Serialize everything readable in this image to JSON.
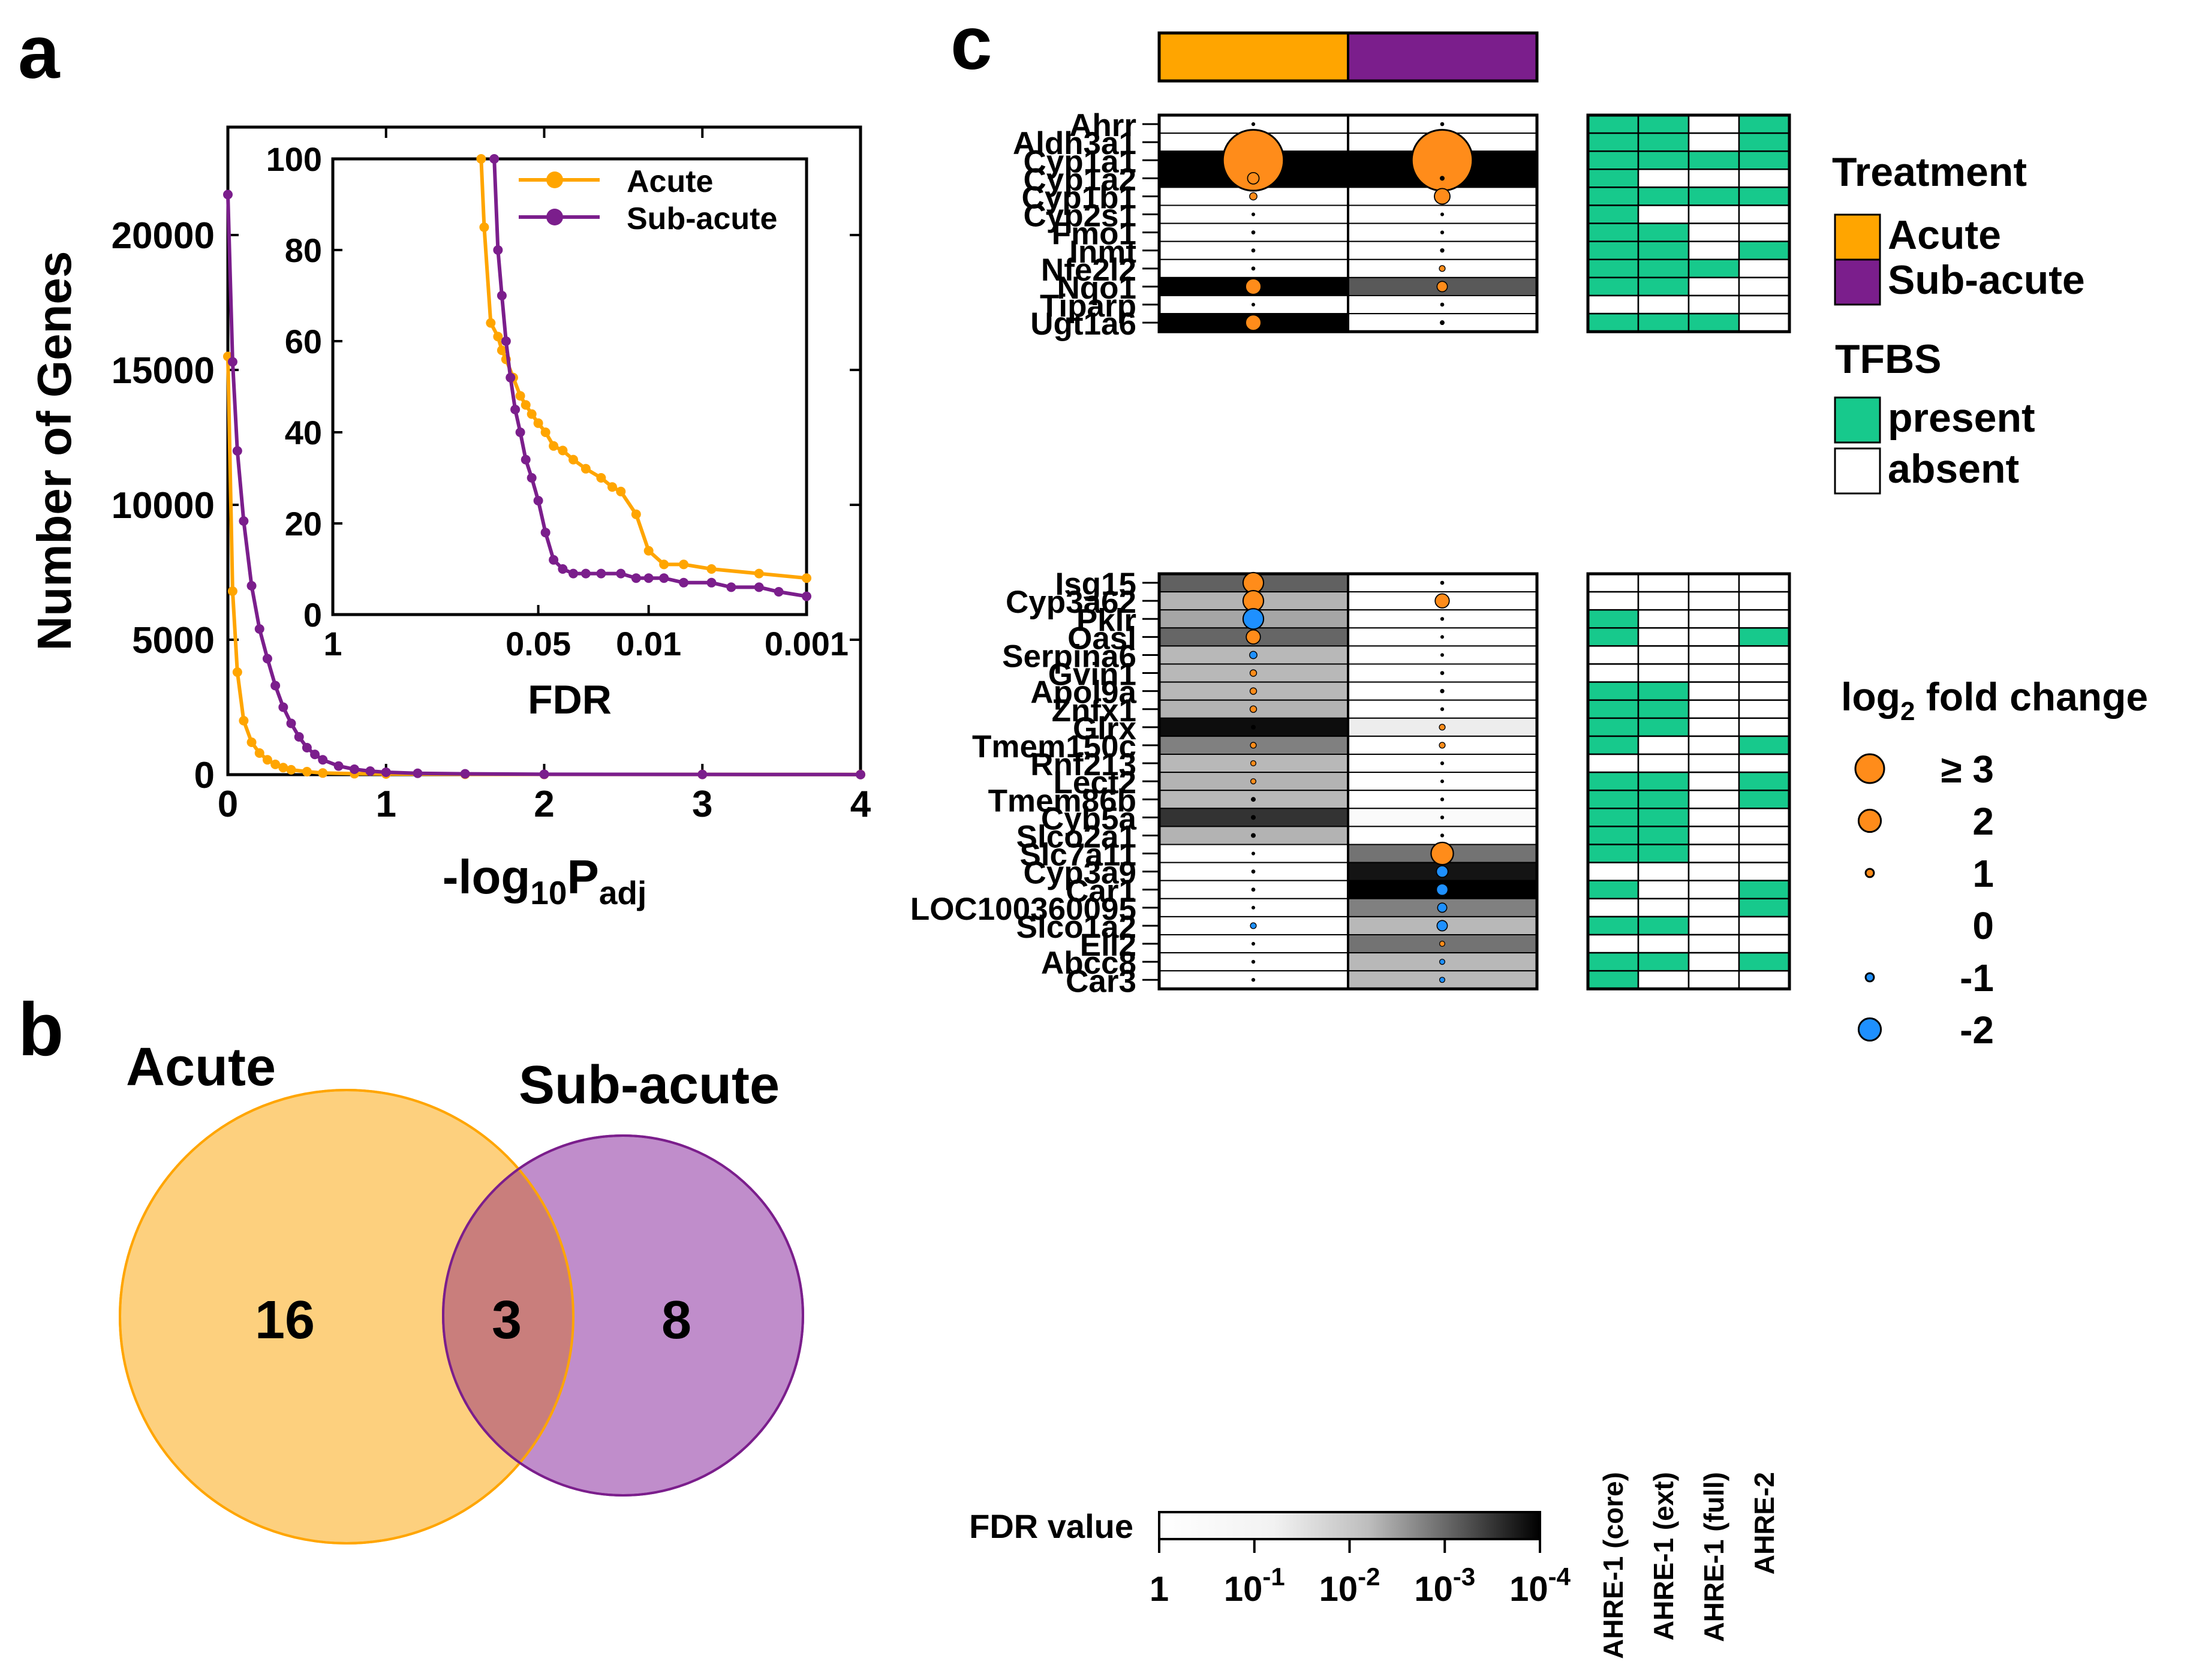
{
  "colors": {
    "acute": "#FFA500",
    "subacute": "#7B1E8C",
    "venn_acute": "#FDD07E",
    "venn_sub": "#C08DCB",
    "venn_overlap": "#C97E7C",
    "present": "#17C98C",
    "absent": "#FFFFFF",
    "pos": "#FF8C1A",
    "neg": "#1E90FF"
  },
  "panels": {
    "a": "a",
    "b": "b",
    "c": "c"
  },
  "chart_data": [
    {
      "id": "panel-a",
      "type": "line",
      "ylabel": "Number of Genes",
      "xlabel_base": "-log",
      "xlabel_sub1": "10",
      "xlabel_main": "P",
      "xlabel_sub2": "adj",
      "xlim": [
        0,
        4
      ],
      "ylim": [
        0,
        24000
      ],
      "xticks": [
        {
          "v": 0,
          "label": "0"
        },
        {
          "v": 1,
          "label": "1"
        },
        {
          "v": 2,
          "label": "2"
        },
        {
          "v": 3,
          "label": "3"
        },
        {
          "v": 4,
          "label": "4"
        }
      ],
      "yticks": [
        {
          "v": 0,
          "label": "0"
        },
        {
          "v": 5000,
          "label": "5000"
        },
        {
          "v": 10000,
          "label": "10000"
        },
        {
          "v": 15000,
          "label": "15000"
        },
        {
          "v": 20000,
          "label": "20000"
        }
      ],
      "series": [
        {
          "name": "Acute",
          "color": "#FFA500",
          "x": [
            0,
            0.03,
            0.06,
            0.1,
            0.15,
            0.2,
            0.25,
            0.3,
            0.35,
            0.4,
            0.5,
            0.6,
            0.8,
            1.0,
            1.5,
            2.0,
            3.0,
            4.0
          ],
          "y": [
            15500,
            6800,
            3800,
            2000,
            1200,
            800,
            550,
            380,
            260,
            180,
            110,
            60,
            35,
            25,
            15,
            10,
            8,
            5
          ]
        },
        {
          "name": "Sub-acute",
          "color": "#7B1E8C",
          "x": [
            0,
            0.03,
            0.06,
            0.1,
            0.15,
            0.2,
            0.25,
            0.3,
            0.35,
            0.4,
            0.45,
            0.5,
            0.55,
            0.6,
            0.7,
            0.8,
            0.9,
            1.0,
            1.2,
            1.5,
            2.0,
            3.0,
            4.0
          ],
          "y": [
            21500,
            15300,
            12000,
            9400,
            7000,
            5400,
            4300,
            3300,
            2500,
            1900,
            1400,
            1000,
            750,
            550,
            320,
            200,
            130,
            90,
            50,
            30,
            15,
            8,
            4
          ]
        }
      ],
      "inset": {
        "xlabel": "FDR",
        "xticks": [
          {
            "v": 1,
            "label": "1"
          },
          {
            "v": 0.05,
            "label": "0.05"
          },
          {
            "v": 0.01,
            "label": "0.01"
          },
          {
            "v": 0.001,
            "label": "0.001"
          }
        ],
        "yticks": [
          {
            "v": 0,
            "label": "0"
          },
          {
            "v": 20,
            "label": "20"
          },
          {
            "v": 40,
            "label": "40"
          },
          {
            "v": 60,
            "label": "60"
          },
          {
            "v": 80,
            "label": "80"
          },
          {
            "v": 100,
            "label": "100"
          }
        ],
        "xlim": [
          1,
          0.001
        ],
        "ylim": [
          0,
          100
        ],
        "series": [
          {
            "name": "Acute",
            "color": "#FFA500",
            "fdr": [
              0.115,
              0.11,
              0.1,
              0.09,
              0.085,
              0.08,
              0.072,
              0.065,
              0.06,
              0.055,
              0.05,
              0.045,
              0.04,
              0.035,
              0.03,
              0.025,
              0.02,
              0.017,
              0.015,
              0.012,
              0.01,
              0.008,
              0.006,
              0.004,
              0.002,
              0.001
            ],
            "n": [
              100,
              85,
              64,
              61,
              58,
              56,
              52,
              48,
              46,
              44,
              42,
              40,
              37,
              36,
              34,
              32,
              30,
              28,
              27,
              22,
              14,
              11,
              11,
              10,
              9,
              8
            ]
          },
          {
            "name": "Sub-acute",
            "color": "#7B1E8C",
            "fdr": [
              0.095,
              0.09,
              0.085,
              0.08,
              0.075,
              0.07,
              0.065,
              0.06,
              0.055,
              0.05,
              0.045,
              0.04,
              0.035,
              0.03,
              0.025,
              0.02,
              0.015,
              0.012,
              0.01,
              0.008,
              0.006,
              0.004,
              0.003,
              0.002,
              0.0015,
              0.001
            ],
            "n": [
              100,
              80,
              70,
              60,
              52,
              45,
              40,
              34,
              30,
              25,
              18,
              12,
              10,
              9,
              9,
              9,
              9,
              8,
              8,
              8,
              7,
              7,
              6,
              6,
              5,
              4
            ]
          }
        ]
      }
    },
    {
      "id": "panel-b",
      "type": "venn",
      "sets": [
        {
          "label": "Acute",
          "only": "16"
        },
        {
          "label": "Sub-acute",
          "only": "8"
        }
      ],
      "overlap": "3"
    },
    {
      "id": "panel-c",
      "type": "heatmap",
      "treatments": [
        "Acute",
        "Sub-acute"
      ],
      "legend": {
        "treatment_title": "Treatment",
        "treatment_items": [
          "Acute",
          "Sub-acute"
        ],
        "tfbs_title": "TFBS",
        "tfbs_items": [
          "present",
          "absent"
        ],
        "fc_title": "log",
        "fc_sub": "2",
        "fc_title_tail": " fold change",
        "fc_levels": [
          3,
          2,
          1,
          0,
          -1,
          -2
        ],
        "fc_labels": [
          "≥ 3",
          "2",
          "1",
          "0",
          "-1",
          "-2"
        ]
      },
      "fdr_bar": {
        "label": "FDR value",
        "ticks": [
          {
            "base": "1",
            "exp": ""
          },
          {
            "base": "10",
            "exp": "-1"
          },
          {
            "base": "10",
            "exp": "-2"
          },
          {
            "base": "10",
            "exp": "-3"
          },
          {
            "base": "10",
            "exp": "-4"
          }
        ]
      },
      "tfbs_columns": [
        "AHRE-1 (core)",
        "AHRE-1 (ext)",
        "AHRE-1 (full)",
        "AHRE-2"
      ],
      "group1": [
        {
          "gene": "Ahrr",
          "fdr": [
            0,
            0
          ],
          "fc": [
            0.2,
            0.3
          ],
          "tfbs": [
            1,
            1,
            0,
            1
          ]
        },
        {
          "gene": "Aldh3a1",
          "fdr": [
            0,
            0
          ],
          "fc": [
            0.7,
            0.1
          ],
          "tfbs": [
            1,
            1,
            0,
            1
          ]
        },
        {
          "gene": "Cyp1a1",
          "fdr": [
            1,
            1
          ],
          "fc": [
            3.5,
            3.5
          ],
          "tfbs": [
            1,
            1,
            1,
            1
          ]
        },
        {
          "gene": "Cyp1a2",
          "fdr": [
            1,
            1
          ],
          "fc": [
            1.3,
            0.5
          ],
          "tfbs": [
            1,
            0,
            0,
            0
          ]
        },
        {
          "gene": "Cyp1b1",
          "fdr": [
            0,
            0
          ],
          "fc": [
            0.9,
            1.6
          ],
          "tfbs": [
            1,
            1,
            1,
            1
          ]
        },
        {
          "gene": "Cyp2s1",
          "fdr": [
            0,
            0
          ],
          "fc": [
            0.1,
            0.1
          ],
          "tfbs": [
            1,
            0,
            0,
            0
          ]
        },
        {
          "gene": "Fmo1",
          "fdr": [
            0,
            0
          ],
          "fc": [
            0.3,
            0.2
          ],
          "tfbs": [
            1,
            1,
            0,
            0
          ]
        },
        {
          "gene": "Inmt",
          "fdr": [
            0,
            0
          ],
          "fc": [
            0.3,
            0.4
          ],
          "tfbs": [
            1,
            1,
            0,
            1
          ]
        },
        {
          "gene": "Nfe2l2",
          "fdr": [
            0,
            0
          ],
          "fc": [
            0.3,
            0.7
          ],
          "tfbs": [
            1,
            1,
            1,
            0
          ]
        },
        {
          "gene": "Nqo1",
          "fdr": [
            1,
            0.65
          ],
          "fc": [
            1.6,
            1.2
          ],
          "tfbs": [
            1,
            1,
            0,
            0
          ]
        },
        {
          "gene": "Tiparp",
          "fdr": [
            0,
            0
          ],
          "fc": [
            0.1,
            0.3
          ],
          "tfbs": [
            0,
            0,
            0,
            0
          ]
        },
        {
          "gene": "Ugt1a6",
          "fdr": [
            1,
            0
          ],
          "fc": [
            1.6,
            0.5
          ],
          "tfbs": [
            1,
            1,
            1,
            0
          ]
        }
      ],
      "group2": [
        {
          "gene": "Isg15",
          "fdr": [
            0.62,
            0
          ],
          "fc": [
            1.9,
            0.3
          ],
          "tfbs": [
            0,
            0,
            0,
            0
          ]
        },
        {
          "gene": "Cyp3a62",
          "fdr": [
            0.3,
            0
          ],
          "fc": [
            1.9,
            1.5
          ],
          "tfbs": [
            0,
            0,
            0,
            0
          ]
        },
        {
          "gene": "Pklr",
          "fdr": [
            0.35,
            0
          ],
          "fc": [
            -1.9,
            0.2
          ],
          "tfbs": [
            1,
            0,
            0,
            0
          ]
        },
        {
          "gene": "Oasl",
          "fdr": [
            0.6,
            0
          ],
          "fc": [
            1.5,
            0.1
          ],
          "tfbs": [
            1,
            0,
            0,
            1
          ]
        },
        {
          "gene": "Serpina6",
          "fdr": [
            0.28,
            0
          ],
          "fc": [
            -0.9,
            0.1
          ],
          "tfbs": [
            0,
            0,
            0,
            0
          ]
        },
        {
          "gene": "Gvin1",
          "fdr": [
            0.28,
            0
          ],
          "fc": [
            0.8,
            -0.3
          ],
          "tfbs": [
            0,
            0,
            0,
            0
          ]
        },
        {
          "gene": "Apol9a",
          "fdr": [
            0.28,
            0
          ],
          "fc": [
            0.8,
            -0.4
          ],
          "tfbs": [
            1,
            1,
            0,
            0
          ]
        },
        {
          "gene": "Znfx1",
          "fdr": [
            0.3,
            0
          ],
          "fc": [
            0.8,
            0.2
          ],
          "tfbs": [
            1,
            1,
            0,
            0
          ]
        },
        {
          "gene": "Glrx",
          "fdr": [
            0.95,
            0.07
          ],
          "fc": [
            0.5,
            0.7
          ],
          "tfbs": [
            1,
            1,
            0,
            0
          ]
        },
        {
          "gene": "Tmem150c",
          "fdr": [
            0.5,
            0
          ],
          "fc": [
            0.7,
            0.7
          ],
          "tfbs": [
            1,
            0,
            0,
            1
          ]
        },
        {
          "gene": "Rnf213",
          "fdr": [
            0.28,
            0
          ],
          "fc": [
            0.6,
            0.2
          ],
          "tfbs": [
            0,
            0,
            0,
            0
          ]
        },
        {
          "gene": "Lect2",
          "fdr": [
            0.3,
            0
          ],
          "fc": [
            0.6,
            0.1
          ],
          "tfbs": [
            1,
            1,
            0,
            1
          ]
        },
        {
          "gene": "Tmem86b",
          "fdr": [
            0.28,
            0
          ],
          "fc": [
            0.5,
            0.2
          ],
          "tfbs": [
            1,
            1,
            0,
            1
          ]
        },
        {
          "gene": "Cyb5a",
          "fdr": [
            0.8,
            0.02
          ],
          "fc": [
            0.5,
            0.2
          ],
          "tfbs": [
            1,
            1,
            0,
            0
          ]
        },
        {
          "gene": "Slco2a1",
          "fdr": [
            0.3,
            0
          ],
          "fc": [
            -0.5,
            0.2
          ],
          "tfbs": [
            1,
            1,
            0,
            0
          ]
        },
        {
          "gene": "Slc7a11",
          "fdr": [
            0,
            0.55
          ],
          "fc": [
            0.1,
            2.0
          ],
          "tfbs": [
            1,
            1,
            0,
            0
          ]
        },
        {
          "gene": "Cyp3a9",
          "fdr": [
            0,
            0.92
          ],
          "fc": [
            0.3,
            -1.3
          ],
          "tfbs": [
            0,
            0,
            0,
            0
          ]
        },
        {
          "gene": "Car1",
          "fdr": [
            0,
            1
          ],
          "fc": [
            0.3,
            -1.3
          ],
          "tfbs": [
            1,
            0,
            0,
            1
          ]
        },
        {
          "gene": "LOC100360095",
          "fdr": [
            0,
            0.5
          ],
          "fc": [
            0.1,
            -1.1
          ],
          "tfbs": [
            0,
            0,
            0,
            1
          ]
        },
        {
          "gene": "Slco1a2",
          "fdr": [
            0,
            0.28
          ],
          "fc": [
            -0.7,
            -1.2
          ],
          "tfbs": [
            1,
            1,
            0,
            0
          ]
        },
        {
          "gene": "Ell2",
          "fdr": [
            0,
            0.55
          ],
          "fc": [
            0.1,
            0.6
          ],
          "tfbs": [
            0,
            0,
            0,
            0
          ]
        },
        {
          "gene": "Abcc8",
          "fdr": [
            0,
            0.28
          ],
          "fc": [
            0.2,
            -0.6
          ],
          "tfbs": [
            1,
            1,
            0,
            1
          ]
        },
        {
          "gene": "Car3",
          "fdr": [
            0,
            0.28
          ],
          "fc": [
            0.2,
            -0.6
          ],
          "tfbs": [
            1,
            0,
            0,
            0
          ]
        }
      ]
    }
  ]
}
